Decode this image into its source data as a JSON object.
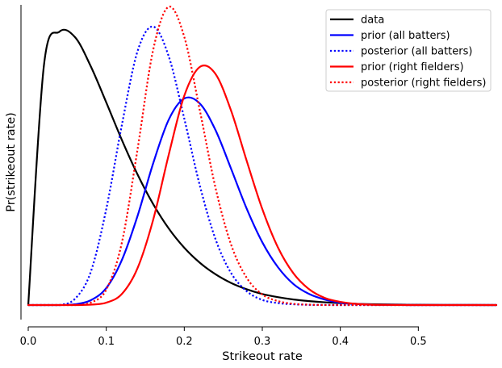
{
  "chart_data": {
    "type": "line",
    "title": "",
    "xlabel": "Strikeout rate",
    "ylabel": "Pr(strikeout rate)",
    "xlim": [
      0.0,
      0.6
    ],
    "ylim": [
      0.0,
      7.6
    ],
    "x_ticks": [
      0.0,
      0.1,
      0.2,
      0.3,
      0.4,
      0.5
    ],
    "x_tick_labels": [
      "0.0",
      "0.1",
      "0.2",
      "0.3",
      "0.4",
      "0.5"
    ],
    "y_ticks_shown": false,
    "grid": false,
    "legend_position": "top-right",
    "x": [
      0.0,
      0.02,
      0.04,
      0.06,
      0.08,
      0.1,
      0.12,
      0.14,
      0.16,
      0.18,
      0.2,
      0.22,
      0.24,
      0.26,
      0.28,
      0.3,
      0.32,
      0.34,
      0.36,
      0.38,
      0.4,
      0.42,
      0.44,
      0.46,
      0.48,
      0.5,
      0.55,
      0.6
    ],
    "series": [
      {
        "name": "data",
        "color": "#000000",
        "style": "solid",
        "values": [
          0.0,
          6.05,
          6.92,
          6.78,
          6.05,
          5.13,
          4.18,
          3.31,
          2.56,
          1.94,
          1.45,
          1.07,
          0.78,
          0.56,
          0.4,
          0.28,
          0.2,
          0.14,
          0.1,
          0.07,
          0.05,
          0.03,
          0.02,
          0.015,
          0.01,
          0.007,
          0.003,
          0.0
        ]
      },
      {
        "name": "prior (all batters)",
        "color": "#0000ff",
        "style": "solid",
        "values": [
          0.0,
          0.0,
          0.0,
          0.02,
          0.12,
          0.43,
          1.14,
          2.25,
          3.58,
          4.69,
          5.23,
          5.1,
          4.43,
          3.45,
          2.44,
          1.59,
          0.96,
          0.53,
          0.28,
          0.14,
          0.06,
          0.03,
          0.01,
          0.004,
          0.001,
          0.0,
          0.0,
          0.0
        ]
      },
      {
        "name": "posterior (all batters)",
        "color": "#0000ff",
        "style": "dotted",
        "values": [
          0.0,
          0.0,
          0.0,
          0.16,
          0.83,
          2.43,
          4.56,
          6.42,
          7.05,
          6.3,
          4.72,
          3.02,
          1.67,
          0.81,
          0.35,
          0.13,
          0.05,
          0.02,
          0.005,
          0.001,
          0.0,
          0.0,
          0.0,
          0.0,
          0.0,
          0.0,
          0.0,
          0.0
        ]
      },
      {
        "name": "prior (right fielders)",
        "color": "#ff0000",
        "style": "solid",
        "values": [
          0.0,
          0.0,
          0.0,
          0.0,
          0.01,
          0.06,
          0.28,
          0.93,
          2.15,
          3.8,
          5.3,
          6.03,
          5.85,
          4.92,
          3.65,
          2.43,
          1.46,
          0.8,
          0.4,
          0.18,
          0.08,
          0.03,
          0.01,
          0.004,
          0.001,
          0.0,
          0.0,
          0.0
        ]
      },
      {
        "name": "posterior (right fielders)",
        "color": "#ff0000",
        "style": "dotted",
        "values": [
          0.0,
          0.0,
          0.0,
          0.0,
          0.06,
          0.39,
          1.58,
          3.93,
          6.45,
          7.55,
          6.79,
          4.92,
          2.97,
          1.53,
          0.69,
          0.27,
          0.1,
          0.03,
          0.01,
          0.002,
          0.0,
          0.0,
          0.0,
          0.0,
          0.0,
          0.0,
          0.0,
          0.0
        ]
      }
    ]
  }
}
